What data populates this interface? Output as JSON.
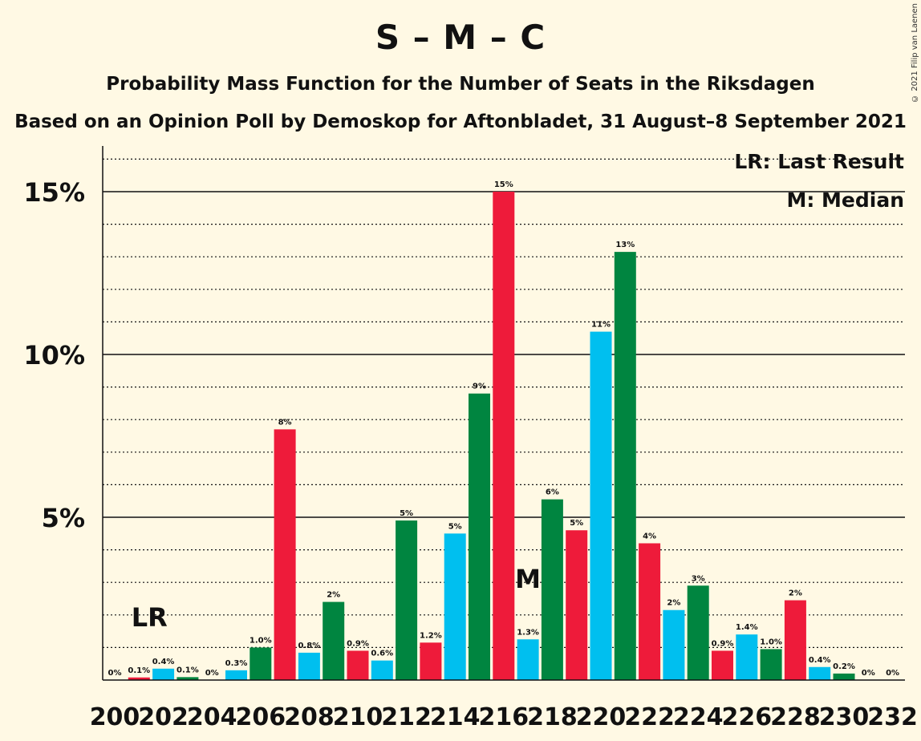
{
  "title": "S – M – C",
  "subtitle": "Probability Mass Function for the Number of Seats in the Riksdagen",
  "subtitle2": "Based on an Opinion Poll by Demoskop for Aftonbladet, 31 August–8 September 2021",
  "copyright": "© 2021 Filip van Laenen",
  "legend": {
    "last_result": "LR: Last Result",
    "median": "M: Median"
  },
  "markers": {
    "last_result": "LR",
    "median": "M"
  },
  "colors": {
    "background": "#FFF9E4",
    "blue": "#00BFEF",
    "green": "#008540",
    "red": "#EE1B3A"
  },
  "chart_data": {
    "type": "bar",
    "ylim": [
      0,
      16.4
    ],
    "yticks": [
      {
        "value": 5,
        "label": "5%"
      },
      {
        "value": 10,
        "label": "10%"
      },
      {
        "value": 15,
        "label": "15%"
      }
    ],
    "xticks": [
      "200",
      "202",
      "204",
      "206",
      "208",
      "210",
      "212",
      "214",
      "216",
      "218",
      "220",
      "222",
      "224",
      "226",
      "228",
      "230",
      "232"
    ],
    "last_result_seat": 201,
    "median_seat": 217,
    "bars": [
      {
        "seat": 200,
        "value": 0.0,
        "label": "0%",
        "color": "red"
      },
      {
        "seat": 201,
        "value": 0.08,
        "label": "0.1%",
        "color": "red"
      },
      {
        "seat": 202,
        "value": 0.35,
        "label": "0.4%",
        "color": "blue"
      },
      {
        "seat": 203,
        "value": 0.09,
        "label": "0.1%",
        "color": "green"
      },
      {
        "seat": 204,
        "value": 0.0,
        "label": "0%",
        "color": "red"
      },
      {
        "seat": 205,
        "value": 0.3,
        "label": "0.3%",
        "color": "blue"
      },
      {
        "seat": 206,
        "value": 1.0,
        "label": "1.0%",
        "color": "green"
      },
      {
        "seat": 207,
        "value": 7.7,
        "label": "8%",
        "color": "red"
      },
      {
        "seat": 208,
        "value": 0.84,
        "label": "0.8%",
        "color": "blue"
      },
      {
        "seat": 209,
        "value": 2.4,
        "label": "2%",
        "color": "green"
      },
      {
        "seat": 210,
        "value": 0.9,
        "label": "0.9%",
        "color": "red"
      },
      {
        "seat": 211,
        "value": 0.6,
        "label": "0.6%",
        "color": "blue"
      },
      {
        "seat": 212,
        "value": 4.9,
        "label": "5%",
        "color": "green"
      },
      {
        "seat": 213,
        "value": 1.15,
        "label": "1.2%",
        "color": "red"
      },
      {
        "seat": 214,
        "value": 4.5,
        "label": "5%",
        "color": "blue"
      },
      {
        "seat": 215,
        "value": 8.8,
        "label": "9%",
        "color": "green"
      },
      {
        "seat": 216,
        "value": 15.0,
        "label": "15%",
        "color": "red"
      },
      {
        "seat": 217,
        "value": 1.25,
        "label": "1.3%",
        "color": "blue"
      },
      {
        "seat": 218,
        "value": 5.55,
        "label": "6%",
        "color": "green"
      },
      {
        "seat": 219,
        "value": 4.6,
        "label": "5%",
        "color": "red"
      },
      {
        "seat": 220,
        "value": 10.7,
        "label": "11%",
        "color": "blue"
      },
      {
        "seat": 221,
        "value": 13.15,
        "label": "13%",
        "color": "green"
      },
      {
        "seat": 222,
        "value": 4.2,
        "label": "4%",
        "color": "red"
      },
      {
        "seat": 223,
        "value": 2.15,
        "label": "2%",
        "color": "blue"
      },
      {
        "seat": 224,
        "value": 2.9,
        "label": "3%",
        "color": "green"
      },
      {
        "seat": 225,
        "value": 0.9,
        "label": "0.9%",
        "color": "red"
      },
      {
        "seat": 226,
        "value": 1.4,
        "label": "1.4%",
        "color": "blue"
      },
      {
        "seat": 227,
        "value": 0.95,
        "label": "1.0%",
        "color": "green"
      },
      {
        "seat": 228,
        "value": 2.45,
        "label": "2%",
        "color": "red"
      },
      {
        "seat": 229,
        "value": 0.4,
        "label": "0.4%",
        "color": "blue"
      },
      {
        "seat": 230,
        "value": 0.2,
        "label": "0.2%",
        "color": "green"
      },
      {
        "seat": 231,
        "value": 0.0,
        "label": "0%",
        "color": "red"
      },
      {
        "seat": 232,
        "value": 0.0,
        "label": "0%",
        "color": "blue"
      }
    ]
  }
}
